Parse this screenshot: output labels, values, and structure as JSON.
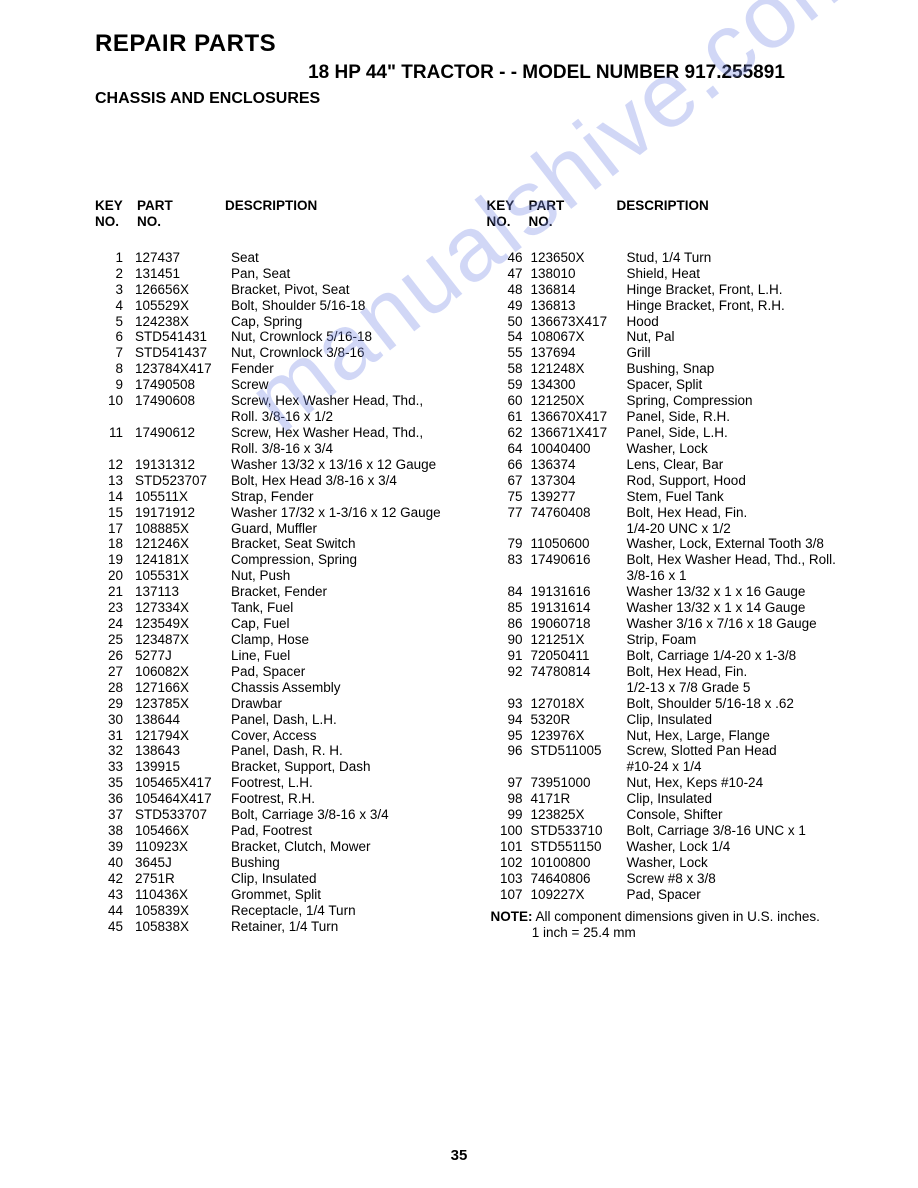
{
  "title": "REPAIR PARTS",
  "subtitle": "18 HP 44\" TRACTOR - - MODEL NUMBER 917.255891",
  "section": "CHASSIS AND ENCLOSURES",
  "watermark": "manualshive.com",
  "page_number": "35",
  "headers": {
    "key_top": "KEY",
    "key_bot": "NO.",
    "part_top": "PART",
    "part_bot": "NO.",
    "desc": "DESCRIPTION"
  },
  "left_rows": [
    {
      "k": "1",
      "p": "127437",
      "d": "Seat"
    },
    {
      "k": "2",
      "p": "131451",
      "d": "Pan, Seat"
    },
    {
      "k": "3",
      "p": "126656X",
      "d": "Bracket, Pivot, Seat"
    },
    {
      "k": "4",
      "p": "105529X",
      "d": "Bolt, Shoulder  5/16-18"
    },
    {
      "k": "5",
      "p": "124238X",
      "d": "Cap, Spring"
    },
    {
      "k": "6",
      "p": "STD541431",
      "d": "Nut, Crownlock  5/16-18"
    },
    {
      "k": "7",
      "p": "STD541437",
      "d": "Nut, Crownlock  3/8-16"
    },
    {
      "k": "8",
      "p": "123784X417",
      "d": "Fender"
    },
    {
      "k": "9",
      "p": "17490508",
      "d": "Screw"
    },
    {
      "k": "10",
      "p": "17490608",
      "d": "Screw, Hex Washer Head, Thd.,"
    },
    {
      "k": "",
      "p": "",
      "d": "Roll.  3/8-16 x 1/2"
    },
    {
      "k": "11",
      "p": "17490612",
      "d": "Screw, Hex Washer Head, Thd.,"
    },
    {
      "k": "",
      "p": "",
      "d": "Roll.  3/8-16 x 3/4"
    },
    {
      "k": "12",
      "p": "19131312",
      "d": "Washer  13/32 x 13/16 x 12 Gauge"
    },
    {
      "k": "13",
      "p": "STD523707",
      "d": "Bolt, Hex Head  3/8-16 x 3/4"
    },
    {
      "k": "14",
      "p": "105511X",
      "d": "Strap, Fender"
    },
    {
      "k": "15",
      "p": "19171912",
      "d": "Washer  17/32 x 1-3/16 x 12 Gauge"
    },
    {
      "k": "17",
      "p": "108885X",
      "d": "Guard, Muffler"
    },
    {
      "k": "18",
      "p": "121246X",
      "d": "Bracket, Seat Switch"
    },
    {
      "k": "19",
      "p": "124181X",
      "d": "Compression, Spring"
    },
    {
      "k": "20",
      "p": "105531X",
      "d": "Nut, Push"
    },
    {
      "k": "21",
      "p": "137113",
      "d": "Bracket, Fender"
    },
    {
      "k": "23",
      "p": "127334X",
      "d": "Tank, Fuel"
    },
    {
      "k": "24",
      "p": "123549X",
      "d": "Cap, Fuel"
    },
    {
      "k": "25",
      "p": "123487X",
      "d": "Clamp, Hose"
    },
    {
      "k": "26",
      "p": "5277J",
      "d": "Line, Fuel"
    },
    {
      "k": "27",
      "p": "106082X",
      "d": "Pad, Spacer"
    },
    {
      "k": "28",
      "p": "127166X",
      "d": "Chassis Assembly"
    },
    {
      "k": "29",
      "p": "123785X",
      "d": "Drawbar"
    },
    {
      "k": "30",
      "p": "138644",
      "d": "Panel, Dash, L.H."
    },
    {
      "k": "31",
      "p": "121794X",
      "d": "Cover, Access"
    },
    {
      "k": "32",
      "p": "138643",
      "d": "Panel, Dash, R. H."
    },
    {
      "k": "33",
      "p": "139915",
      "d": "Bracket, Support, Dash"
    },
    {
      "k": "35",
      "p": "105465X417",
      "d": "Footrest, L.H."
    },
    {
      "k": "36",
      "p": "105464X417",
      "d": "Footrest, R.H."
    },
    {
      "k": "37",
      "p": "STD533707",
      "d": "Bolt, Carriage  3/8-16 x 3/4"
    },
    {
      "k": "38",
      "p": "105466X",
      "d": "Pad, Footrest"
    },
    {
      "k": "39",
      "p": "110923X",
      "d": "Bracket, Clutch, Mower"
    },
    {
      "k": "40",
      "p": "3645J",
      "d": "Bushing"
    },
    {
      "k": "42",
      "p": "2751R",
      "d": "Clip, Insulated"
    },
    {
      "k": "43",
      "p": "110436X",
      "d": "Grommet, Split"
    },
    {
      "k": "44",
      "p": "105839X",
      "d": "Receptacle, 1/4 Turn"
    },
    {
      "k": "45",
      "p": "105838X",
      "d": "Retainer, 1/4 Turn"
    }
  ],
  "right_rows": [
    {
      "k": "46",
      "p": "123650X",
      "d": "Stud, 1/4 Turn"
    },
    {
      "k": "47",
      "p": "138010",
      "d": "Shield, Heat"
    },
    {
      "k": "48",
      "p": "136814",
      "d": "Hinge Bracket, Front, L.H."
    },
    {
      "k": "49",
      "p": "136813",
      "d": "Hinge Bracket, Front, R.H."
    },
    {
      "k": "50",
      "p": "136673X417",
      "d": "Hood"
    },
    {
      "k": "54",
      "p": "108067X",
      "d": "Nut, Pal"
    },
    {
      "k": "55",
      "p": "137694",
      "d": "Grill"
    },
    {
      "k": "58",
      "p": "121248X",
      "d": "Bushing, Snap"
    },
    {
      "k": "59",
      "p": "134300",
      "d": "Spacer, Split"
    },
    {
      "k": "60",
      "p": "121250X",
      "d": "Spring, Compression"
    },
    {
      "k": "61",
      "p": "136670X417",
      "d": "Panel, Side, R.H."
    },
    {
      "k": "62",
      "p": "136671X417",
      "d": "Panel, Side, L.H."
    },
    {
      "k": "64",
      "p": "10040400",
      "d": "Washer, Lock"
    },
    {
      "k": "66",
      "p": "136374",
      "d": "Lens, Clear, Bar"
    },
    {
      "k": "67",
      "p": "137304",
      "d": "Rod, Support, Hood"
    },
    {
      "k": "75",
      "p": "139277",
      "d": "Stem, Fuel Tank"
    },
    {
      "k": "77",
      "p": "74760408",
      "d": "Bolt, Hex Head, Fin."
    },
    {
      "k": "",
      "p": "",
      "d": "1/4-20 UNC x 1/2"
    },
    {
      "k": "79",
      "p": "11050600",
      "d": "Washer, Lock, External Tooth  3/8"
    },
    {
      "k": "83",
      "p": "17490616",
      "d": "Bolt, Hex Washer Head, Thd., Roll."
    },
    {
      "k": "",
      "p": "",
      "d": "3/8-16 x 1"
    },
    {
      "k": "84",
      "p": "19131616",
      "d": "Washer  13/32 x 1 x 16 Gauge"
    },
    {
      "k": "85",
      "p": "19131614",
      "d": "Washer  13/32 x 1 x 14 Gauge"
    },
    {
      "k": "86",
      "p": "19060718",
      "d": "Washer  3/16 x 7/16 x 18 Gauge"
    },
    {
      "k": "90",
      "p": "121251X",
      "d": "Strip, Foam"
    },
    {
      "k": "91",
      "p": "72050411",
      "d": "Bolt, Carriage  1/4-20 x 1-3/8"
    },
    {
      "k": "92",
      "p": "74780814",
      "d": "Bolt, Hex Head, Fin."
    },
    {
      "k": "",
      "p": "",
      "d": "1/2-13 x 7/8 Grade 5"
    },
    {
      "k": "93",
      "p": "127018X",
      "d": "Bolt, Shoulder  5/16-18 x .62"
    },
    {
      "k": "94",
      "p": "5320R",
      "d": "Clip, Insulated"
    },
    {
      "k": "95",
      "p": "123976X",
      "d": "Nut, Hex, Large, Flange"
    },
    {
      "k": "96",
      "p": "STD511005",
      "d": "Screw, Slotted Pan Head"
    },
    {
      "k": "",
      "p": "",
      "d": "#10-24 x 1/4"
    },
    {
      "k": "97",
      "p": "73951000",
      "d": "Nut, Hex, Keps  #10-24"
    },
    {
      "k": "98",
      "p": "4171R",
      "d": "Clip, Insulated"
    },
    {
      "k": "99",
      "p": "123825X",
      "d": "Console, Shifter"
    },
    {
      "k": "100",
      "p": "STD533710",
      "d": "Bolt, Carriage  3/8-16 UNC x 1"
    },
    {
      "k": "101",
      "p": "STD551150",
      "d": "Washer, Lock  1/4"
    },
    {
      "k": "102",
      "p": "10100800",
      "d": "Washer, Lock"
    },
    {
      "k": "103",
      "p": "74640806",
      "d": "Screw  #8 x 3/8"
    },
    {
      "k": "107",
      "p": "109227X",
      "d": "Pad, Spacer"
    }
  ],
  "note_label": "NOTE:",
  "note_line1": "All component dimensions given in U.S. inches.",
  "note_line2": "1 inch = 25.4 mm"
}
